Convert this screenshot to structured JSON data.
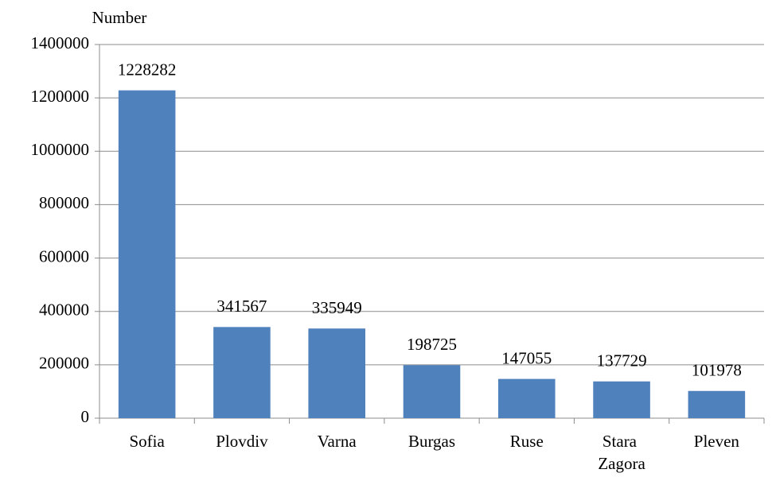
{
  "chart_data": {
    "type": "bar",
    "y_label": "Number",
    "categories": [
      "Sofia",
      "Plovdiv",
      "Varna",
      "Burgas",
      "Ruse",
      "Stara Zagora",
      "Pleven"
    ],
    "values": [
      1228282,
      341567,
      335949,
      198725,
      147055,
      137729,
      101978
    ],
    "color": "#4f81bd",
    "ylim": [
      0,
      1400000
    ],
    "yticks": [
      0,
      200000,
      400000,
      600000,
      800000,
      1000000,
      1200000,
      1400000
    ],
    "grid": true
  }
}
